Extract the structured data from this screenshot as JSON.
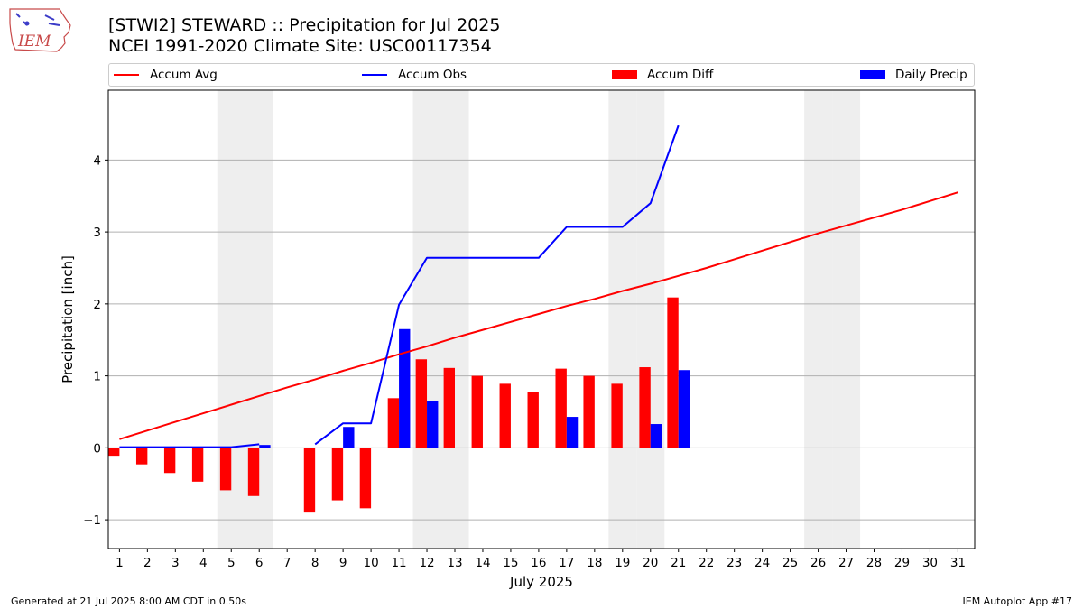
{
  "header": {
    "title_line1": "[STWI2] STEWARD :: Precipitation for Jul 2025",
    "title_line2": "NCEI 1991-2020 Climate Site: USC00117354"
  },
  "logo": {
    "text": "IEM",
    "icon": "iem-iowa-map-logo"
  },
  "footer": {
    "generated": "Generated at 21 Jul 2025 8:00 AM CDT in 0.50s",
    "app": "IEM Autoplot App #17"
  },
  "colors": {
    "avg": "#ff0000",
    "obs": "#0000ff",
    "diff": "#ff0000",
    "precip": "#0000ff",
    "weekend": "#eeeeee",
    "grid": "#b0b0b0"
  },
  "chart_data": {
    "type": "bar",
    "xlabel": "July 2025",
    "ylabel": "Precipitation [inch]",
    "xlim": [
      0.6,
      31.6
    ],
    "ylim": [
      -1.4,
      4.97
    ],
    "yticks": [
      -1,
      0,
      1,
      2,
      3,
      4
    ],
    "ytick_labels": [
      "−1",
      "0",
      "1",
      "2",
      "3",
      "4"
    ],
    "days": [
      1,
      2,
      3,
      4,
      5,
      6,
      7,
      8,
      9,
      10,
      11,
      12,
      13,
      14,
      15,
      16,
      17,
      18,
      19,
      20,
      21,
      22,
      23,
      24,
      25,
      26,
      27,
      28,
      29,
      30,
      31
    ],
    "weekend_days": [
      5,
      6,
      12,
      13,
      19,
      20,
      26,
      27
    ],
    "grid": "y",
    "legend_position": "top",
    "legend": [
      {
        "label": "Accum Avg",
        "kind": "line",
        "color": "#ff0000"
      },
      {
        "label": "Accum Obs",
        "kind": "line",
        "color": "#0000ff"
      },
      {
        "label": "Accum Diff",
        "kind": "bar",
        "color": "#ff0000"
      },
      {
        "label": "Daily Precip",
        "kind": "bar",
        "color": "#0000ff"
      }
    ],
    "series": [
      {
        "name": "Accum Avg",
        "type": "line",
        "color": "#ff0000",
        "x": [
          1,
          2,
          3,
          4,
          5,
          6,
          7,
          8,
          9,
          10,
          11,
          12,
          13,
          14,
          15,
          16,
          17,
          18,
          19,
          20,
          21,
          22,
          23,
          24,
          25,
          26,
          27,
          28,
          29,
          30,
          31
        ],
        "values": [
          0.12,
          0.24,
          0.36,
          0.48,
          0.6,
          0.72,
          0.84,
          0.95,
          1.07,
          1.18,
          1.3,
          1.41,
          1.53,
          1.64,
          1.75,
          1.86,
          1.97,
          2.07,
          2.18,
          2.28,
          2.39,
          2.5,
          2.62,
          2.74,
          2.86,
          2.98,
          3.09,
          3.2,
          3.31,
          3.43,
          3.55
        ]
      },
      {
        "name": "Accum Obs",
        "type": "line",
        "color": "#0000ff",
        "x": [
          1,
          2,
          3,
          4,
          5,
          6,
          null,
          8,
          9,
          10,
          11,
          12,
          13,
          14,
          15,
          16,
          17,
          18,
          19,
          20,
          21
        ],
        "values": [
          0.01,
          0.01,
          0.01,
          0.01,
          0.01,
          0.05,
          null,
          0.05,
          0.34,
          0.34,
          1.99,
          2.64,
          2.64,
          2.64,
          2.64,
          2.64,
          3.07,
          3.07,
          3.07,
          3.4,
          4.48
        ]
      },
      {
        "name": "Accum Diff",
        "type": "bar",
        "color": "#ff0000",
        "x": [
          1,
          2,
          3,
          4,
          5,
          6,
          8,
          9,
          10,
          11,
          12,
          13,
          14,
          15,
          16,
          17,
          18,
          19,
          20,
          21
        ],
        "values": [
          -0.11,
          -0.23,
          -0.35,
          -0.47,
          -0.59,
          -0.67,
          -0.9,
          -0.73,
          -0.84,
          0.69,
          1.23,
          1.11,
          1.0,
          0.89,
          0.78,
          1.1,
          1.0,
          0.89,
          1.12,
          2.09
        ]
      },
      {
        "name": "Daily Precip",
        "type": "bar",
        "color": "#0000ff",
        "x": [
          1,
          2,
          3,
          4,
          5,
          6,
          8,
          9,
          10,
          11,
          12,
          13,
          14,
          15,
          16,
          17,
          18,
          19,
          20,
          21
        ],
        "values": [
          0,
          0,
          0,
          0,
          0,
          0.04,
          0,
          0.29,
          0,
          1.65,
          0.65,
          0,
          0,
          0,
          0,
          0.43,
          0,
          0,
          0.33,
          1.08
        ]
      }
    ]
  }
}
